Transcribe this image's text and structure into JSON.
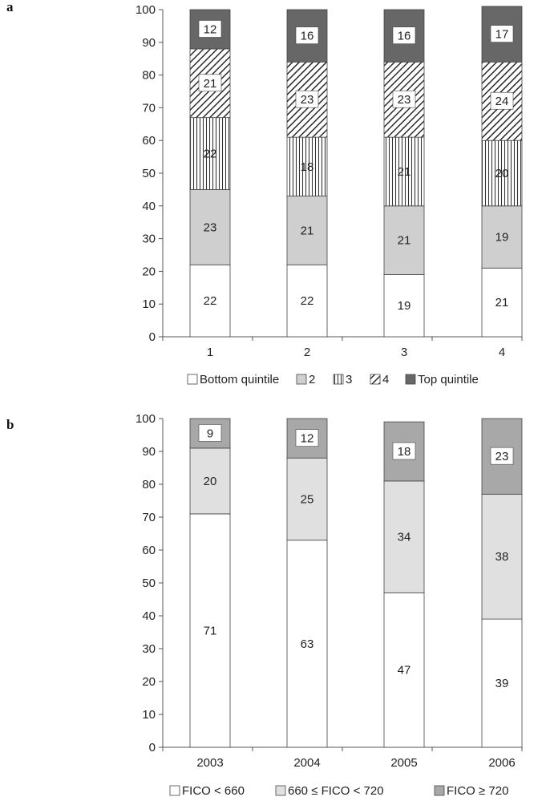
{
  "chart_data": [
    {
      "type": "bar",
      "stacked": true,
      "panel_label": "a",
      "categories": [
        "1",
        "2",
        "3",
        "4"
      ],
      "ylim": [
        0,
        100
      ],
      "yticks": [
        "0",
        "10",
        "20",
        "30",
        "40",
        "50",
        "60",
        "70",
        "80",
        "90",
        "100"
      ],
      "series": [
        {
          "name": "Bottom quintile",
          "values": [
            22,
            22,
            19,
            21
          ],
          "fill": "#ffffff",
          "pattern": "none"
        },
        {
          "name": "2",
          "values": [
            23,
            21,
            21,
            19
          ],
          "fill": "#cfcfcf",
          "pattern": "none"
        },
        {
          "name": "3",
          "values": [
            22,
            18,
            21,
            20
          ],
          "fill": "#ffffff",
          "pattern": "vertical-lines"
        },
        {
          "name": "4",
          "values": [
            21,
            23,
            23,
            24
          ],
          "fill": "#ffffff",
          "pattern": "diagonal-lines"
        },
        {
          "name": "Top quintile",
          "values": [
            12,
            16,
            16,
            17
          ],
          "fill": "#676767",
          "pattern": "none"
        }
      ],
      "legend_placement": "bottom"
    },
    {
      "type": "bar",
      "stacked": true,
      "panel_label": "b",
      "categories": [
        "2003",
        "2004",
        "2005",
        "2006"
      ],
      "ylim": [
        0,
        100
      ],
      "yticks": [
        "0",
        "10",
        "20",
        "30",
        "40",
        "50",
        "60",
        "70",
        "80",
        "90",
        "100"
      ],
      "series": [
        {
          "name": "FICO < 660",
          "values": [
            71,
            63,
            47,
            39
          ],
          "fill": "#ffffff",
          "pattern": "none"
        },
        {
          "name": "660 ≤ FICO < 720",
          "values": [
            20,
            25,
            34,
            38
          ],
          "fill": "#e0e0e0",
          "pattern": "none"
        },
        {
          "name": "FICO ≥ 720",
          "values": [
            9,
            12,
            18,
            23
          ],
          "fill": "#a8a8a8",
          "pattern": "none"
        }
      ],
      "legend_placement": "bottom"
    }
  ]
}
